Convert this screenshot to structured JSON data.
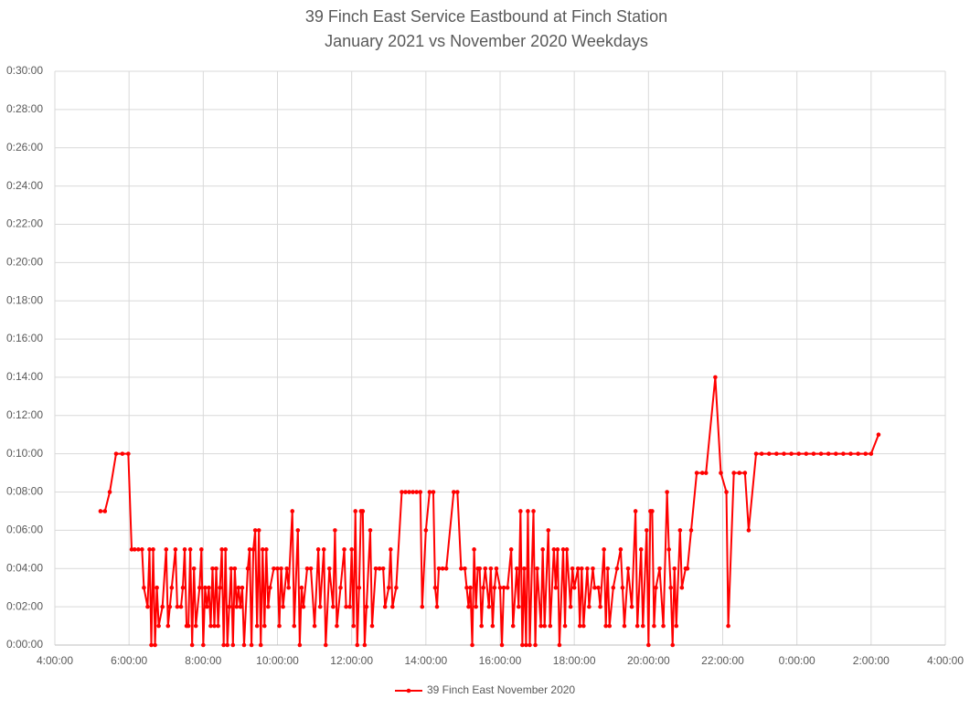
{
  "chart_data": {
    "type": "line",
    "title": "39 Finch East Service Eastbound at Finch Station",
    "subtitle": "January 2021 vs November 2020 Weekdays",
    "x": [
      5.23,
      5.35,
      5.48,
      5.65,
      5.82,
      5.98,
      6.07,
      6.15,
      6.25,
      6.35,
      6.4,
      6.5,
      6.55,
      6.6,
      6.65,
      6.7,
      6.75,
      6.8,
      6.9,
      7.0,
      7.05,
      7.1,
      7.15,
      7.25,
      7.3,
      7.4,
      7.45,
      7.5,
      7.55,
      7.6,
      7.65,
      7.7,
      7.75,
      7.8,
      7.9,
      7.95,
      8.0,
      8.05,
      8.1,
      8.15,
      8.2,
      8.25,
      8.3,
      8.35,
      8.4,
      8.45,
      8.5,
      8.55,
      8.6,
      8.65,
      8.7,
      8.75,
      8.8,
      8.85,
      8.9,
      8.95,
      9.0,
      9.05,
      9.1,
      9.2,
      9.25,
      9.3,
      9.35,
      9.4,
      9.45,
      9.5,
      9.55,
      9.6,
      9.65,
      9.7,
      9.75,
      9.8,
      9.9,
      10.0,
      10.05,
      10.1,
      10.15,
      10.25,
      10.3,
      10.4,
      10.45,
      10.55,
      10.6,
      10.65,
      10.7,
      10.8,
      10.9,
      11.0,
      11.1,
      11.15,
      11.25,
      11.3,
      11.4,
      11.5,
      11.55,
      11.6,
      11.7,
      11.8,
      11.85,
      11.95,
      12.0,
      12.05,
      12.1,
      12.15,
      12.2,
      12.25,
      12.3,
      12.35,
      12.4,
      12.5,
      12.55,
      12.65,
      12.75,
      12.85,
      12.9,
      13.0,
      13.05,
      13.1,
      13.2,
      13.35,
      13.45,
      13.55,
      13.65,
      13.75,
      13.85,
      13.9,
      14.0,
      14.1,
      14.2,
      14.25,
      14.3,
      14.35,
      14.45,
      14.55,
      14.75,
      14.85,
      14.95,
      15.05,
      15.1,
      15.15,
      15.2,
      15.25,
      15.3,
      15.35,
      15.4,
      15.45,
      15.5,
      15.55,
      15.6,
      15.7,
      15.75,
      15.8,
      15.85,
      15.9,
      16.0,
      16.05,
      16.1,
      16.2,
      16.3,
      16.35,
      16.45,
      16.5,
      16.55,
      16.6,
      16.65,
      16.7,
      16.75,
      16.8,
      16.9,
      16.95,
      17.0,
      17.1,
      17.15,
      17.2,
      17.3,
      17.35,
      17.45,
      17.5,
      17.55,
      17.6,
      17.7,
      17.75,
      17.8,
      17.9,
      17.95,
      18.0,
      18.1,
      18.15,
      18.2,
      18.25,
      18.35,
      18.4,
      18.5,
      18.55,
      18.65,
      18.7,
      18.8,
      18.85,
      18.9,
      18.95,
      19.05,
      19.15,
      19.25,
      19.3,
      19.35,
      19.45,
      19.55,
      19.65,
      19.7,
      19.8,
      19.85,
      19.95,
      20.0,
      20.05,
      20.1,
      20.15,
      20.2,
      20.3,
      20.4,
      20.5,
      20.55,
      20.6,
      20.65,
      20.7,
      20.75,
      20.85,
      20.9,
      21.0,
      21.05,
      21.15,
      21.3,
      21.45,
      21.55,
      21.8,
      21.95,
      22.1,
      22.15,
      22.3,
      22.45,
      22.6,
      22.7,
      22.9,
      23.05,
      23.25,
      23.45,
      23.65,
      23.85,
      24.05,
      24.25,
      24.45,
      24.65,
      24.85,
      25.05,
      25.25,
      25.45,
      25.65,
      25.85,
      26.0,
      26.2
    ],
    "series": [
      {
        "name": "39 Finch East November 2020",
        "color": "#ff0000",
        "values": [
          7,
          7,
          8,
          10,
          10,
          10,
          5,
          5,
          5,
          5,
          3,
          2,
          5,
          0,
          5,
          0,
          3,
          1,
          2,
          5,
          1,
          2,
          3,
          5,
          2,
          2,
          3,
          5,
          1,
          1,
          5,
          0,
          4,
          1,
          3,
          5,
          0,
          3,
          2,
          3,
          1,
          4,
          1,
          4,
          1,
          3,
          5,
          0,
          5,
          0,
          2,
          4,
          0,
          4,
          2,
          3,
          2,
          3,
          0,
          4,
          5,
          0,
          5,
          6,
          1,
          6,
          0,
          5,
          1,
          5,
          2,
          3,
          4,
          4,
          1,
          4,
          2,
          4,
          3,
          7,
          1,
          6,
          0,
          3,
          2,
          4,
          4,
          1,
          5,
          2,
          5,
          0,
          4,
          2,
          6,
          1,
          3,
          5,
          2,
          2,
          5,
          1,
          7,
          0,
          3,
          7,
          7,
          0,
          2,
          6,
          1,
          4,
          4,
          4,
          2,
          3,
          5,
          2,
          3,
          8,
          8,
          8,
          8,
          8,
          8,
          2,
          6,
          8,
          8,
          3,
          2,
          4,
          4,
          4,
          8,
          8,
          4,
          4,
          3,
          2,
          3,
          0,
          5,
          2,
          4,
          4,
          1,
          3,
          4,
          2,
          4,
          1,
          3,
          4,
          3,
          0,
          3,
          3,
          5,
          1,
          4,
          2,
          7,
          0,
          4,
          0,
          7,
          0,
          7,
          0,
          4,
          1,
          5,
          1,
          6,
          1,
          5,
          3,
          5,
          0,
          5,
          1,
          5,
          2,
          4,
          3,
          4,
          1,
          4,
          1,
          4,
          2,
          4,
          3,
          3,
          2,
          5,
          1,
          4,
          1,
          3,
          4,
          5,
          3,
          1,
          4,
          2,
          7,
          1,
          5,
          1,
          6,
          0,
          7,
          7,
          1,
          3,
          4,
          1,
          8,
          5,
          3,
          0,
          4,
          1,
          6,
          3,
          4,
          4,
          6,
          9,
          9,
          9,
          14,
          9,
          8,
          1,
          9,
          9,
          9,
          6,
          10,
          10,
          10,
          10,
          10,
          10,
          10,
          10,
          10,
          10,
          10,
          10,
          10,
          10,
          10,
          10,
          10,
          11
        ]
      }
    ],
    "xlim": [
      4,
      28
    ],
    "xticks": [
      {
        "value": 4,
        "label": "4:00:00"
      },
      {
        "value": 6,
        "label": "6:00:00"
      },
      {
        "value": 8,
        "label": "8:00:00"
      },
      {
        "value": 10,
        "label": "10:00:00"
      },
      {
        "value": 12,
        "label": "12:00:00"
      },
      {
        "value": 14,
        "label": "14:00:00"
      },
      {
        "value": 16,
        "label": "16:00:00"
      },
      {
        "value": 18,
        "label": "18:00:00"
      },
      {
        "value": 20,
        "label": "20:00:00"
      },
      {
        "value": 22,
        "label": "22:00:00"
      },
      {
        "value": 24,
        "label": "0:00:00"
      },
      {
        "value": 26,
        "label": "2:00:00"
      },
      {
        "value": 28,
        "label": "4:00:00"
      }
    ],
    "ylim": [
      0,
      30
    ],
    "yticks": [
      {
        "value": 0,
        "label": "0:00:00"
      },
      {
        "value": 2,
        "label": "0:02:00"
      },
      {
        "value": 4,
        "label": "0:04:00"
      },
      {
        "value": 6,
        "label": "0:06:00"
      },
      {
        "value": 8,
        "label": "0:08:00"
      },
      {
        "value": 10,
        "label": "0:10:00"
      },
      {
        "value": 12,
        "label": "0:12:00"
      },
      {
        "value": 14,
        "label": "0:14:00"
      },
      {
        "value": 16,
        "label": "0:16:00"
      },
      {
        "value": 18,
        "label": "0:18:00"
      },
      {
        "value": 20,
        "label": "0:20:00"
      },
      {
        "value": 22,
        "label": "0:22:00"
      },
      {
        "value": 24,
        "label": "0:24:00"
      },
      {
        "value": 26,
        "label": "0:26:00"
      },
      {
        "value": 28,
        "label": "0:28:00"
      },
      {
        "value": 30,
        "label": "0:30:00"
      }
    ],
    "grid": true,
    "legend": "bottom"
  }
}
